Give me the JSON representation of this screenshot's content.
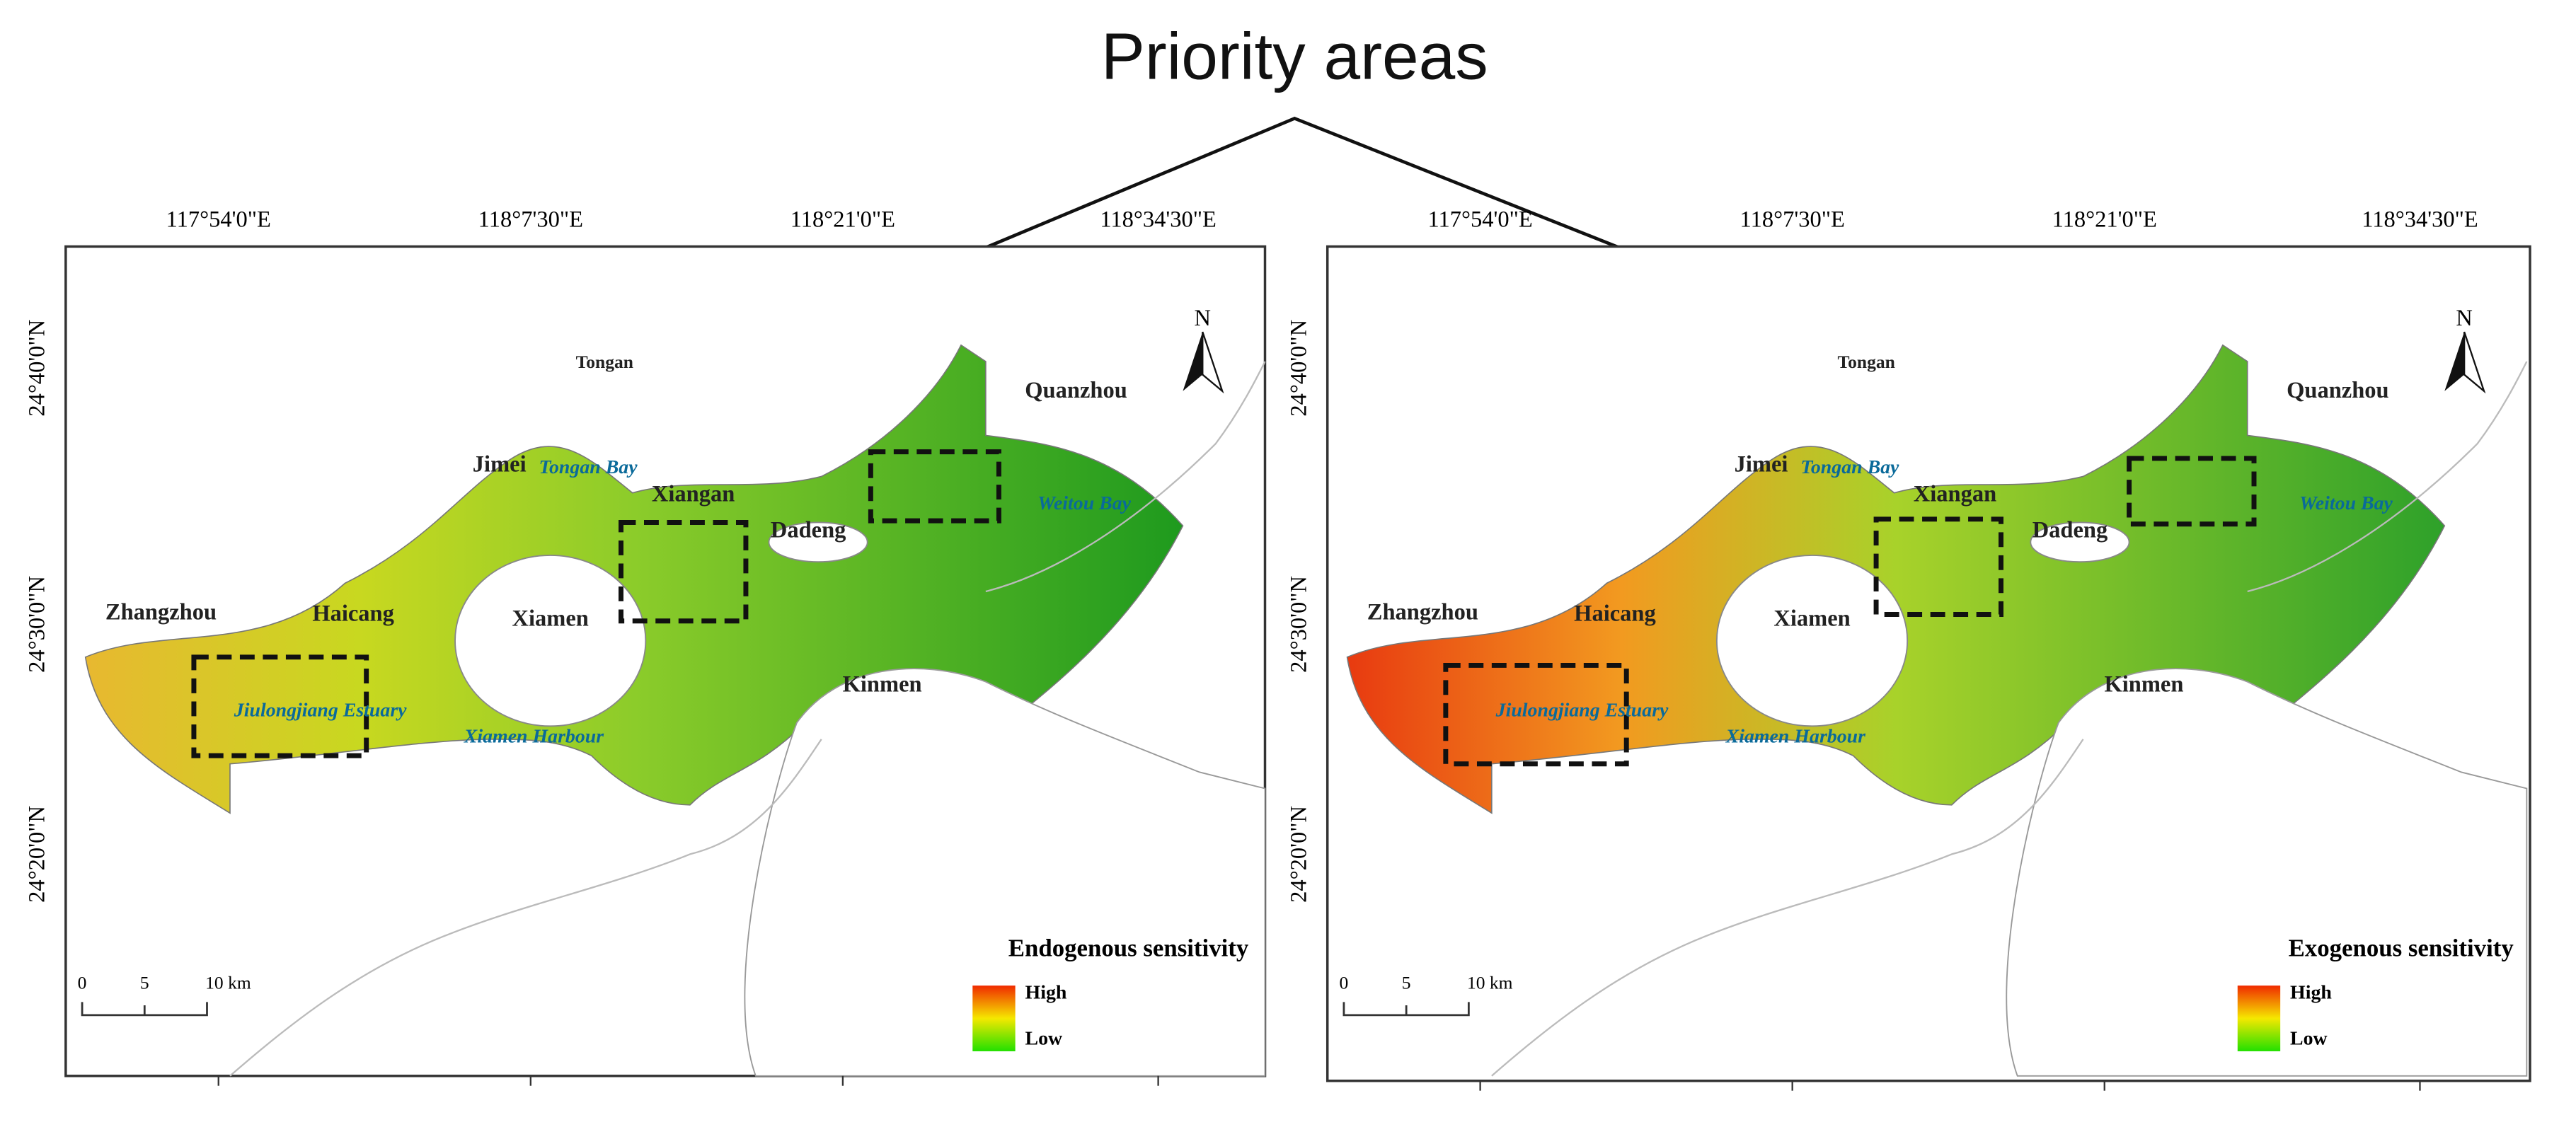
{
  "title": "Priority areas",
  "panels": [
    {
      "lon_labels": [
        "117°54'0\"E",
        "118°7'30\"E",
        "118°21'0\"E",
        "118°34'30\"E"
      ],
      "lat_labels": [
        "24°40'0\"N",
        "24°30'0\"N",
        "24°20'0\"N"
      ],
      "places": [
        "Tongan",
        "Quanzhou",
        "Jimei",
        "Tongan Bay",
        "Xiangan",
        "Dadeng",
        "Weitou Bay",
        "Zhangzhou",
        "Haicang",
        "Xiamen",
        "Kinmen",
        "Jiulongjiang Estuary",
        "Xiamen Harbour"
      ],
      "north": "N",
      "legend": {
        "title": "Endogenous sensitivity",
        "high": "High",
        "low": "Low"
      },
      "scale": [
        "0",
        "5",
        "10 km"
      ]
    },
    {
      "lon_labels": [
        "117°54'0\"E",
        "118°7'30\"E",
        "118°21'0\"E",
        "118°34'30\"E"
      ],
      "lat_labels": [
        "24°40'0\"N",
        "24°30'0\"N",
        "24°20'0\"N"
      ],
      "places": [
        "Tongan",
        "Quanzhou",
        "Jimei",
        "Tongan Bay",
        "Xiangan",
        "Dadeng",
        "Weitou Bay",
        "Zhangzhou",
        "Haicang",
        "Xiamen",
        "Kinmen",
        "Jiulongjiang Estuary",
        "Xiamen Harbour"
      ],
      "north": "N",
      "legend": {
        "title": "Exogenous sensitivity",
        "high": "High",
        "low": "Low"
      },
      "scale": [
        "0",
        "5",
        "10 km"
      ]
    }
  ]
}
